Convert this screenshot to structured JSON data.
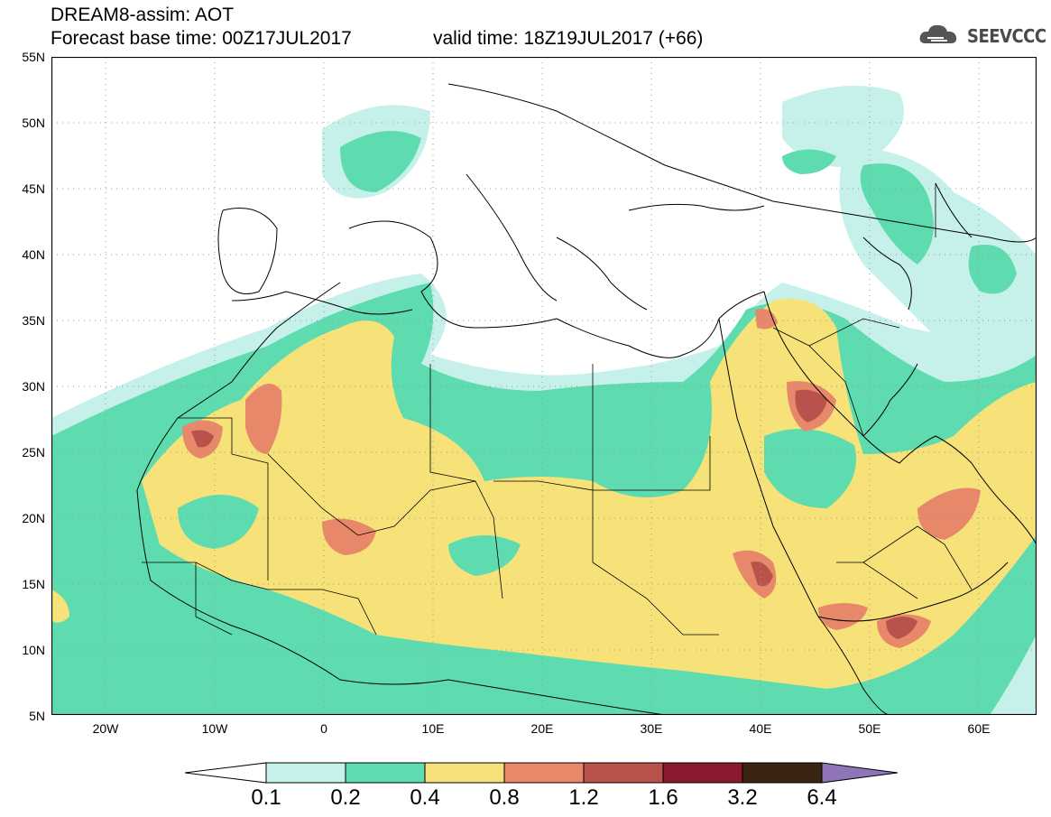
{
  "header": {
    "title_line1": "DREAM8-assim: AOT",
    "title_line2": "Forecast base time: 00Z17JUL2017",
    "valid_time": "valid time: 18Z19JUL2017 (+66)",
    "logo_text": "SEEVCCC"
  },
  "axes": {
    "lat_labels": [
      "55N",
      "50N",
      "45N",
      "40N",
      "35N",
      "30N",
      "25N",
      "20N",
      "15N",
      "10N",
      "5N"
    ],
    "lon_labels": [
      "20W",
      "10W",
      "0",
      "10E",
      "20E",
      "30E",
      "40E",
      "50E",
      "60E"
    ]
  },
  "colorbar": {
    "labels": [
      "0.1",
      "0.2",
      "0.4",
      "0.8",
      "1.2",
      "1.6",
      "3.2",
      "6.4"
    ],
    "colors": [
      "#c6f1ea",
      "#5fdcaf",
      "#f7e27a",
      "#e8886a",
      "#b8524a",
      "#8b1a2e",
      "#3a2414",
      "#8f74b8"
    ]
  },
  "colors": {
    "land_outline": "#000000",
    "grid": "#888888",
    "background": "#ffffff"
  }
}
